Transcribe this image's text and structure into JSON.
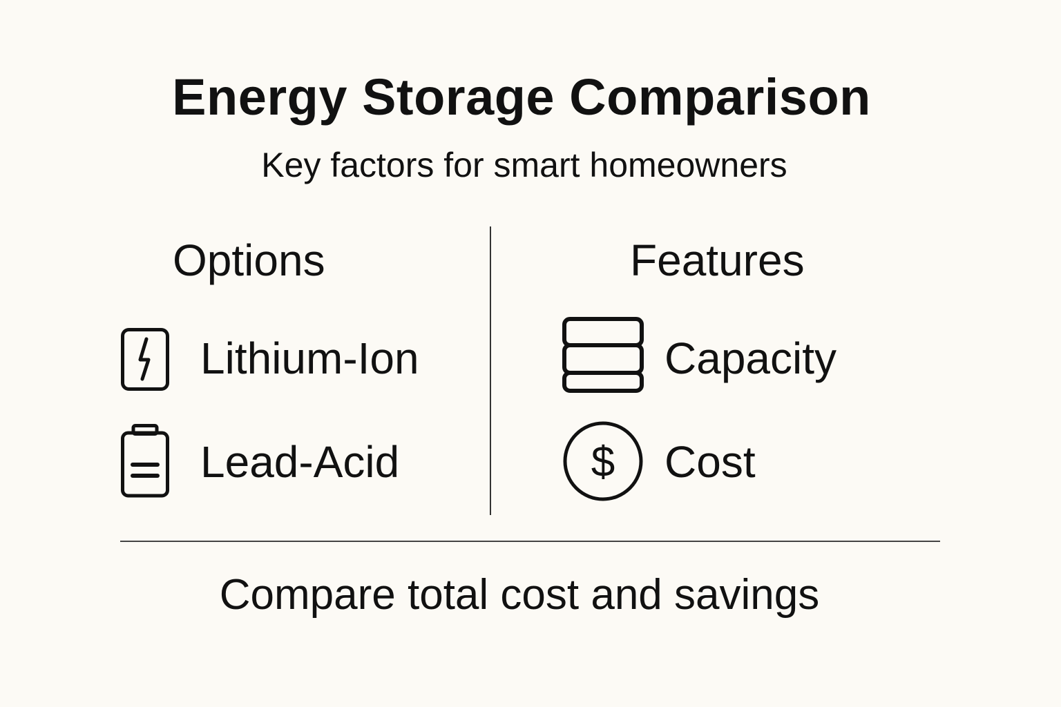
{
  "title": "Energy Storage Comparison",
  "subtitle": "Key factors for smart homeowners",
  "options": {
    "heading": "Options",
    "items": [
      {
        "label": "Lithium-Ion",
        "icon": "lightning-battery-icon"
      },
      {
        "label": "Lead-Acid",
        "icon": "battery-icon"
      }
    ]
  },
  "features": {
    "heading": "Features",
    "items": [
      {
        "label": "Capacity",
        "icon": "stacked-layers-icon"
      },
      {
        "label": "Cost",
        "icon": "dollar-coin-icon"
      }
    ]
  },
  "footer": "Compare total cost and savings",
  "colors": {
    "background": "#fcfaf5",
    "ink": "#111111"
  }
}
